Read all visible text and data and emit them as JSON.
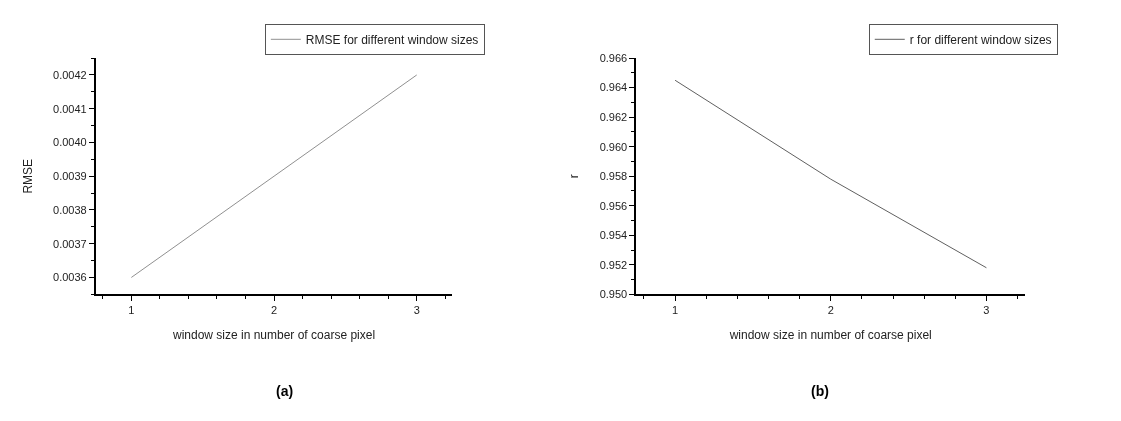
{
  "chart_data": [
    {
      "type": "line",
      "xlabel": "window size in number of coarse pixel",
      "ylabel": "RMSE",
      "x": [
        1,
        2,
        3
      ],
      "xlim": [
        0.75,
        3.25
      ],
      "xticks": [
        1,
        2,
        3
      ],
      "ylim": [
        0.00355,
        0.00425
      ],
      "yticks": [
        0.0036,
        0.0037,
        0.0038,
        0.0039,
        {
          "value": 0.004,
          "label": "0.0040"
        },
        0.0041,
        0.0042
      ],
      "series": [
        {
          "name": "RMSE for different window sizes",
          "color": "#909090",
          "values": [
            0.0036,
            0.0039,
            0.0042
          ]
        }
      ],
      "legend": "top right",
      "grid": false,
      "marker": "none",
      "line_style": "solid",
      "annotations": [
        "(a)"
      ]
    },
    {
      "type": "line",
      "xlabel": "window size in number of coarse pixel",
      "ylabel": "r",
      "x": [
        1,
        2,
        3
      ],
      "xlim": [
        0.75,
        3.25
      ],
      "xticks": [
        1,
        2,
        3
      ],
      "ylim": [
        0.95,
        0.966
      ],
      "yticks": [
        {
          "value": 0.95,
          "label": "0.950"
        },
        0.952,
        0.954,
        0.956,
        0.958,
        {
          "value": 0.96,
          "label": "0.960"
        },
        0.962,
        0.964,
        0.966
      ],
      "series": [
        {
          "name": "r for different window sizes",
          "color": "#606060",
          "values": [
            0.9645,
            0.9578,
            0.9518
          ]
        }
      ],
      "legend": "top right",
      "grid": false,
      "marker": "none",
      "line_style": "solid",
      "annotations": [
        "(b)"
      ]
    }
  ]
}
